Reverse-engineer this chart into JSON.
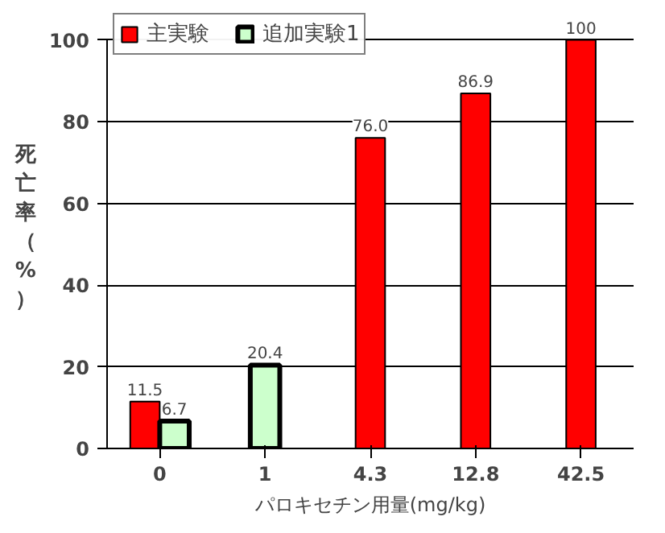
{
  "chart_data": {
    "type": "bar",
    "categories": [
      "0",
      "1",
      "4.3",
      "12.8",
      "42.5"
    ],
    "xlabel": "パロキセチン用量(mg/kg)",
    "ylabel": "死亡率（%）",
    "ylim": [
      0,
      100
    ],
    "yticks": [
      0,
      20,
      40,
      60,
      80,
      100
    ],
    "grid": "y",
    "legend": "top left",
    "series": [
      {
        "name": "主実験",
        "color": "#ff0000",
        "values": [
          11.5,
          null,
          76.0,
          86.9,
          100
        ],
        "value_labels": [
          "11.5",
          null,
          "76.0",
          "86.9",
          "100"
        ]
      },
      {
        "name": "追加実験1",
        "color": "#ccffcc",
        "values": [
          6.7,
          20.4,
          null,
          null,
          null
        ],
        "value_labels": [
          "6.7",
          "20.4",
          null,
          null,
          null
        ]
      }
    ]
  }
}
